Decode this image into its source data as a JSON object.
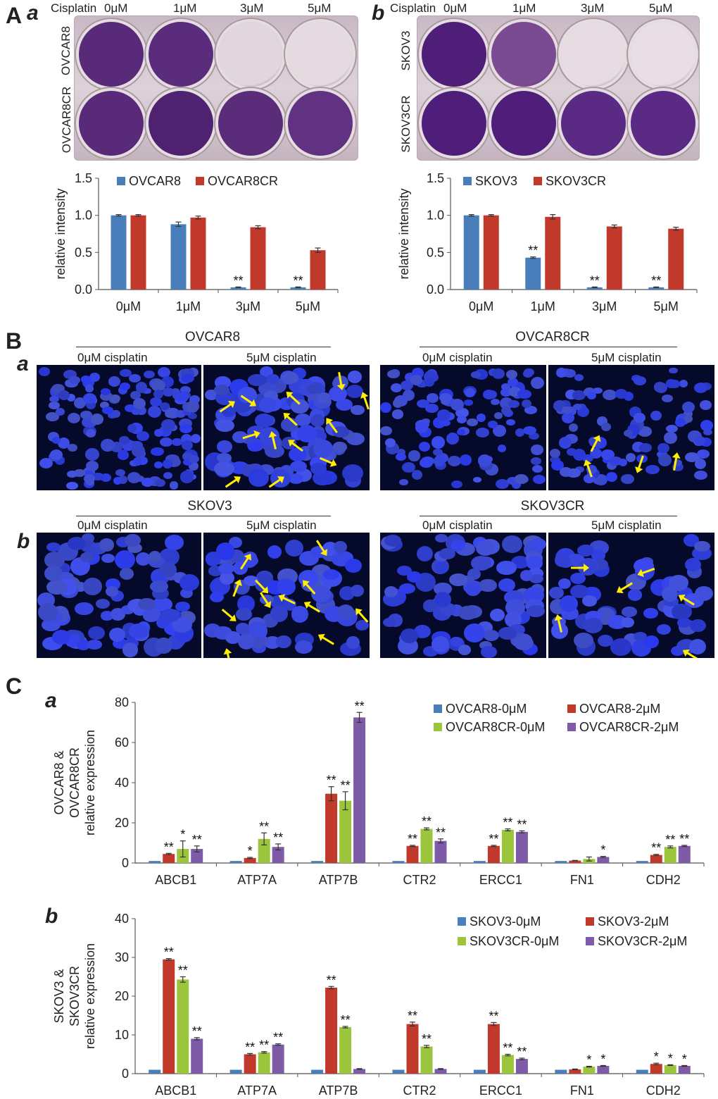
{
  "panel_A": {
    "label": "A",
    "sub_a": "a",
    "sub_b": "b",
    "plate_a": {
      "treatment": "Cisplatin",
      "doses": [
        "0μM",
        "1μM",
        "3μM",
        "5μM"
      ],
      "rows": [
        "OVCAR8",
        "OVCAR8CR"
      ],
      "well_colors": [
        [
          "#5a2a7a",
          "#5c2c7c",
          "#e2d6de",
          "#e4dae0"
        ],
        [
          "#5a2a7a",
          "#4e2270",
          "#5a2c7a",
          "#623282"
        ]
      ]
    },
    "plate_b": {
      "treatment": "Cisplatin",
      "doses": [
        "0μM",
        "1μM",
        "3μM",
        "5μM"
      ],
      "rows": [
        "SKOV3",
        "SKOV3CR"
      ],
      "well_colors": [
        [
          "#4e1e78",
          "#7a4a92",
          "#e6dce2",
          "#e8dee4"
        ],
        [
          "#4e1e7a",
          "#4e1e7a",
          "#5a2a84",
          "#5a2a84"
        ]
      ]
    }
  },
  "panel_B": {
    "label": "B",
    "sub_a": "a",
    "sub_b": "b",
    "groups": [
      {
        "name": "OVCAR8",
        "left": "0μM cisplatin",
        "right": "5μM cisplatin"
      },
      {
        "name": "OVCAR8CR",
        "left": "0μM cisplatin",
        "right": "5μM cisplatin"
      },
      {
        "name": "SKOV3",
        "left": "0μM cisplatin",
        "right": "5μM cisplatin"
      },
      {
        "name": "SKOV3CR",
        "left": "0μM cisplatin",
        "right": "5μM cisplatin"
      }
    ],
    "nucleus_color": "#2f3fd8",
    "arrow_color": "#ffee00"
  },
  "panel_C": {
    "label": "C",
    "sub_a": "a",
    "sub_b": "b"
  },
  "colors": {
    "blue": "#4a7ebb",
    "red": "#c0392b",
    "green": "#9bc53d",
    "purple": "#7d5ba6"
  },
  "chart_data": [
    {
      "type": "bar",
      "panel": "A a",
      "categories": [
        "0μM",
        "1μM",
        "3μM",
        "5μM"
      ],
      "series": [
        {
          "name": "OVCAR8",
          "values": [
            1.0,
            0.88,
            0.03,
            0.03
          ],
          "errors": [
            0.01,
            0.03,
            0.005,
            0.005
          ],
          "annotations": [
            "",
            "",
            "**",
            "**"
          ]
        },
        {
          "name": "OVCAR8CR",
          "values": [
            1.0,
            0.97,
            0.84,
            0.53
          ],
          "errors": [
            0.01,
            0.02,
            0.02,
            0.03
          ],
          "annotations": [
            "",
            "",
            "",
            ""
          ]
        }
      ],
      "ylabel": "relative intensity",
      "ylim": [
        0,
        1.5
      ],
      "yticks": [
        "0.0",
        "0.5",
        "1.0",
        "1.5"
      ],
      "legend": "top"
    },
    {
      "type": "bar",
      "panel": "A b",
      "categories": [
        "0μM",
        "1μM",
        "3μM",
        "5μM"
      ],
      "series": [
        {
          "name": "SKOV3",
          "values": [
            1.0,
            0.43,
            0.03,
            0.03
          ],
          "errors": [
            0.01,
            0.01,
            0.005,
            0.005
          ],
          "annotations": [
            "",
            "**",
            "**",
            "**"
          ]
        },
        {
          "name": "SKOV3CR",
          "values": [
            1.0,
            0.98,
            0.85,
            0.82
          ],
          "errors": [
            0.01,
            0.03,
            0.02,
            0.02
          ],
          "annotations": [
            "",
            "",
            "",
            ""
          ]
        }
      ],
      "ylabel": "relative intensity",
      "ylim": [
        0,
        1.5
      ],
      "yticks": [
        "0.0",
        "0.5",
        "1.0",
        "1.5"
      ],
      "legend": "top"
    },
    {
      "type": "bar",
      "panel": "C a",
      "categories": [
        "ABCB1",
        "ATP7A",
        "ATP7B",
        "CTR2",
        "ERCC1",
        "FN1",
        "CDH2"
      ],
      "series": [
        {
          "name": "OVCAR8-0μM",
          "values": [
            1,
            1,
            1,
            1,
            1,
            1,
            1
          ],
          "errors": [
            0,
            0,
            0,
            0,
            0,
            0,
            0
          ],
          "annotations": [
            "",
            "",
            "",
            "",
            "",
            "",
            ""
          ]
        },
        {
          "name": "OVCAR8-2μM",
          "values": [
            4.5,
            2.5,
            34.5,
            8.5,
            8.5,
            1.2,
            4
          ],
          "errors": [
            0.3,
            0.3,
            3.5,
            0.3,
            0.3,
            0.1,
            0.3
          ],
          "annotations": [
            "**",
            "*",
            "**",
            "**",
            "**",
            "",
            "**"
          ]
        },
        {
          "name": "OVCAR8CR-0μM",
          "values": [
            7,
            12,
            31,
            17,
            16.5,
            2,
            8
          ],
          "errors": [
            4,
            3,
            4.5,
            0.5,
            0.5,
            1,
            0.5
          ],
          "annotations": [
            "*",
            "**",
            "**",
            "**",
            "**",
            "",
            "**"
          ]
        },
        {
          "name": "OVCAR8CR-2μM",
          "values": [
            7,
            8,
            72.5,
            11,
            15.5,
            3,
            8.5
          ],
          "errors": [
            1.5,
            1.5,
            2.5,
            1,
            0.5,
            0.3,
            0.3
          ],
          "annotations": [
            "**",
            "**",
            "**",
            "**",
            "**",
            "*",
            "**"
          ]
        }
      ],
      "ylabel": "OVCAR8 & OVCAR8CR relative expression",
      "ylim": [
        0,
        80
      ],
      "yticks": [
        "0",
        "20",
        "40",
        "60",
        "80"
      ],
      "legend": "top-right"
    },
    {
      "type": "bar",
      "panel": "C b",
      "categories": [
        "ABCB1",
        "ATP7A",
        "ATP7B",
        "CTR2",
        "ERCC1",
        "FN1",
        "CDH2"
      ],
      "series": [
        {
          "name": "SKOV3-0μM",
          "values": [
            1,
            1,
            1,
            1,
            1,
            1,
            1
          ],
          "errors": [
            0,
            0,
            0,
            0,
            0,
            0,
            0
          ],
          "annotations": [
            "",
            "",
            "",
            "",
            "",
            "",
            ""
          ]
        },
        {
          "name": "SKOV3-2μM",
          "values": [
            29.5,
            5,
            22.2,
            12.8,
            12.8,
            1.1,
            2.5
          ],
          "errors": [
            0.2,
            0.2,
            0.3,
            0.5,
            0.4,
            0.1,
            0.2
          ],
          "annotations": [
            "**",
            "**",
            "**",
            "**",
            "**",
            "",
            "*"
          ]
        },
        {
          "name": "SKOV3CR-0μM",
          "values": [
            24.3,
            5.5,
            12,
            7,
            4.8,
            1.8,
            2.2
          ],
          "errors": [
            0.7,
            0.2,
            0.2,
            0.3,
            0.2,
            0.1,
            0.1
          ],
          "annotations": [
            "**",
            "**",
            "**",
            "**",
            "**",
            "*",
            "*"
          ]
        },
        {
          "name": "SKOV3CR-2μM",
          "values": [
            9,
            7.5,
            1.2,
            1.2,
            3.8,
            2,
            2
          ],
          "errors": [
            0.3,
            0.2,
            0.1,
            0.1,
            0.2,
            0.1,
            0.1
          ],
          "annotations": [
            "**",
            "**",
            "",
            "",
            "**",
            "*",
            "*"
          ]
        }
      ],
      "ylabel": "SKOV3 & SKOV3CR relative expression",
      "ylim": [
        0,
        40
      ],
      "yticks": [
        "0",
        "10",
        "20",
        "30",
        "40"
      ],
      "legend": "top-right"
    }
  ]
}
